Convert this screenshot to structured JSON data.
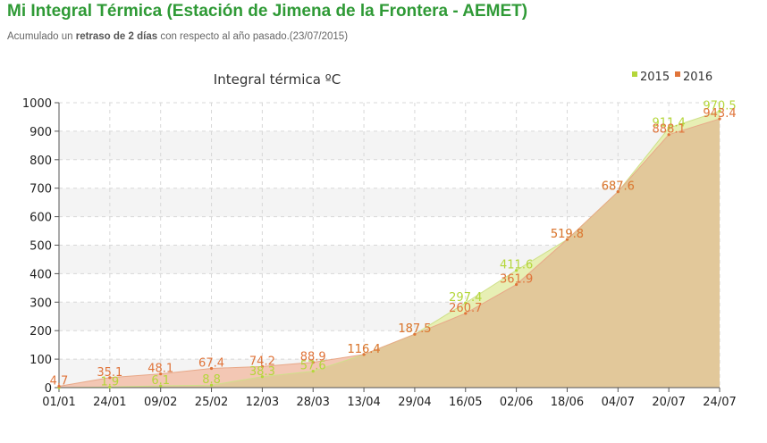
{
  "page": {
    "title": "Mi Integral Térmica (Estación de Jimena de la Frontera - AEMET)",
    "subtitle_prefix": "Acumulado un ",
    "subtitle_bold": "retraso de 2 días",
    "subtitle_suffix": " con respecto al año pasado.(23/07/2015)"
  },
  "colors": {
    "series_2015": "#b4d63a",
    "series_2016": "#e0743a",
    "fill_2015": "#e7efb4",
    "fill_2016": "#f3c7b4",
    "fill_overlap": "#e2c89a"
  },
  "chart_data": {
    "type": "area",
    "title": "Integral térmica ºC",
    "xlabel": "",
    "ylabel": "",
    "ylim": [
      0,
      1000
    ],
    "yticks": [
      0,
      100,
      200,
      300,
      400,
      500,
      600,
      700,
      800,
      900,
      1000
    ],
    "categories": [
      "01/01",
      "24/01",
      "09/02",
      "25/02",
      "12/03",
      "28/03",
      "13/04",
      "29/04",
      "16/05",
      "02/06",
      "18/06",
      "04/07",
      "20/07",
      "24/07"
    ],
    "legend_position": "top-right",
    "grid": true,
    "series": [
      {
        "name": "2015",
        "values": [
          0,
          1.9,
          6.1,
          8.8,
          38.3,
          57.6,
          116.4,
          187.5,
          297.4,
          411.6,
          519.8,
          687.6,
          911.4,
          970.5
        ],
        "labels": [
          "",
          "1.9",
          "6.1",
          "8.8",
          "38.3",
          "57.6",
          "116.4",
          "187.5",
          "297.4",
          "411.6",
          "519.8",
          "687.6",
          "911.4",
          "970.5"
        ]
      },
      {
        "name": "2016",
        "values": [
          4.7,
          35.1,
          48.1,
          67.4,
          74.2,
          88.9,
          116.4,
          187.5,
          260.7,
          361.9,
          519.8,
          687.6,
          888.1,
          943.4
        ],
        "labels": [
          "4.7",
          "35.1",
          "48.1",
          "67.4",
          "74.2",
          "88.9",
          "116.4",
          "187.5",
          "260.7",
          "361.9",
          "519.8",
          "687.6",
          "888.1",
          "943.4"
        ]
      }
    ]
  }
}
